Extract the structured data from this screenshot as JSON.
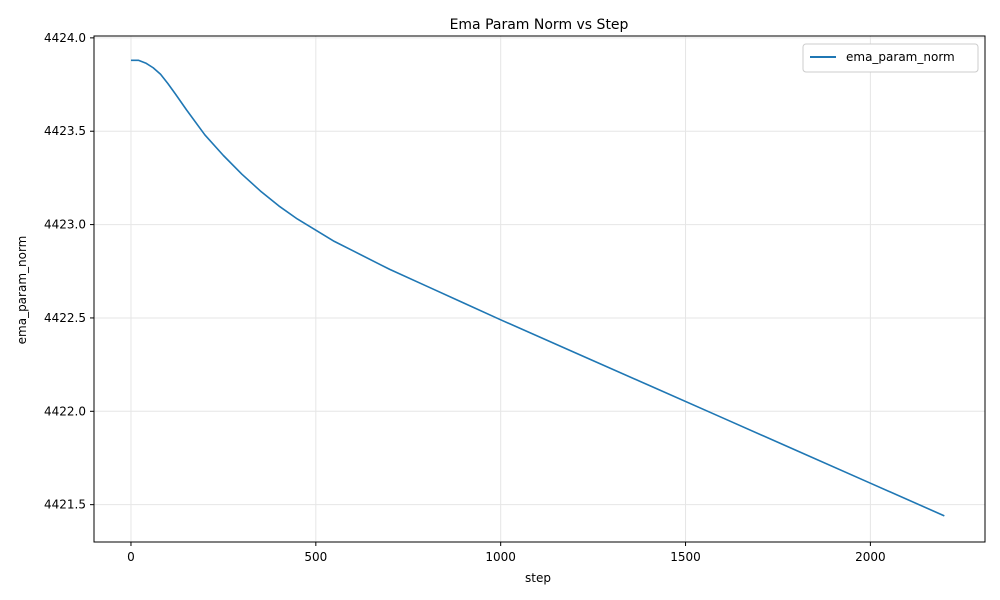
{
  "chart_data": {
    "type": "line",
    "title": "Ema Param Norm vs Step",
    "xlabel": "step",
    "ylabel": "ema_param_norm",
    "xlim": [
      -100,
      2310
    ],
    "ylim": [
      4421.3,
      4424.01
    ],
    "xticks": [
      0,
      500,
      1000,
      1500,
      2000
    ],
    "xtick_labels": [
      "0",
      "500",
      "1000",
      "1500",
      "2000"
    ],
    "yticks": [
      4421.5,
      4422.0,
      4422.5,
      4423.0,
      4423.5,
      4424.0
    ],
    "ytick_labels": [
      "4421.5",
      "4422.0",
      "4422.5",
      "4423.0",
      "4423.5",
      "4424.0"
    ],
    "grid": true,
    "legend_position": "top-right",
    "colors": {
      "series": "#1f77b4",
      "grid": "#e6e6e6",
      "axis": "#000000"
    },
    "series": [
      {
        "name": "ema_param_norm",
        "x": [
          0,
          20,
          40,
          60,
          80,
          100,
          120,
          150,
          200,
          250,
          300,
          350,
          400,
          450,
          500,
          550,
          600,
          700,
          800,
          900,
          1000,
          1200,
          1400,
          1600,
          1800,
          2000,
          2200
        ],
        "y": [
          4423.88,
          4423.88,
          4423.865,
          4423.84,
          4423.805,
          4423.755,
          4423.7,
          4423.615,
          4423.48,
          4423.37,
          4423.27,
          4423.18,
          4423.1,
          4423.03,
          4422.97,
          4422.91,
          4422.86,
          4422.76,
          4422.67,
          4422.58,
          4422.49,
          4422.315,
          4422.14,
          4421.965,
          4421.79,
          4421.615,
          4421.44
        ]
      }
    ]
  }
}
